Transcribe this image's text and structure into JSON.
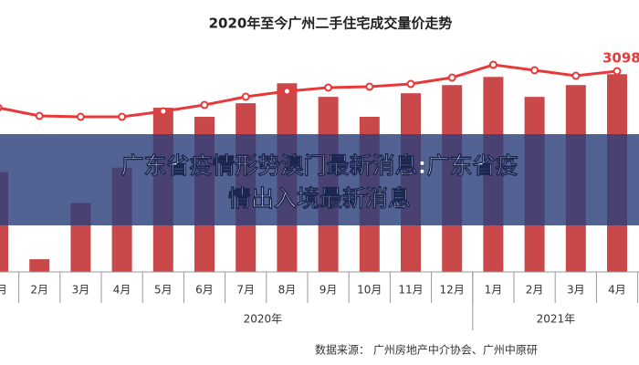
{
  "chart_data": {
    "type": "bar_line",
    "title": "2020年至今广州二手住宅成交量价走势",
    "categories": [
      "1月",
      "2月",
      "3月",
      "4月",
      "5月",
      "6月",
      "7月",
      "8月",
      "9月",
      "10月",
      "11月",
      "12月",
      "1月",
      "2月",
      "3月",
      "4月"
    ],
    "groups": [
      "2020年",
      "2021年"
    ],
    "series": [
      {
        "color": "#c9484a",
        "values": [
          110,
          14,
          76,
          115,
          181,
          171,
          186,
          208,
          193,
          171,
          197,
          206,
          215,
          193,
          206,
          218
        ]
      },
      {
        "color": "#e8393a",
        "axis": "y2",
        "values": [
          2535,
          2408,
          2394,
          2394,
          2479,
          2577,
          2704,
          2789,
          2845,
          2859,
          2901,
          3000,
          3197,
          3113,
          3028,
          3098
        ],
        "value_labels": [
          null,
          null,
          null,
          null,
          null,
          null,
          null,
          null,
          null,
          null,
          null,
          null,
          null,
          null,
          null,
          "3098"
        ]
      }
    ],
    "ylim": [
      0,
      250
    ],
    "y2lim": [
      0,
      3500
    ],
    "caption": [
      "广东省疫情形势澳门最新消息:广东省疫",
      "情出入境最新消息"
    ],
    "source": "数据来源： 广州房地产中介协会、广州中原研"
  }
}
